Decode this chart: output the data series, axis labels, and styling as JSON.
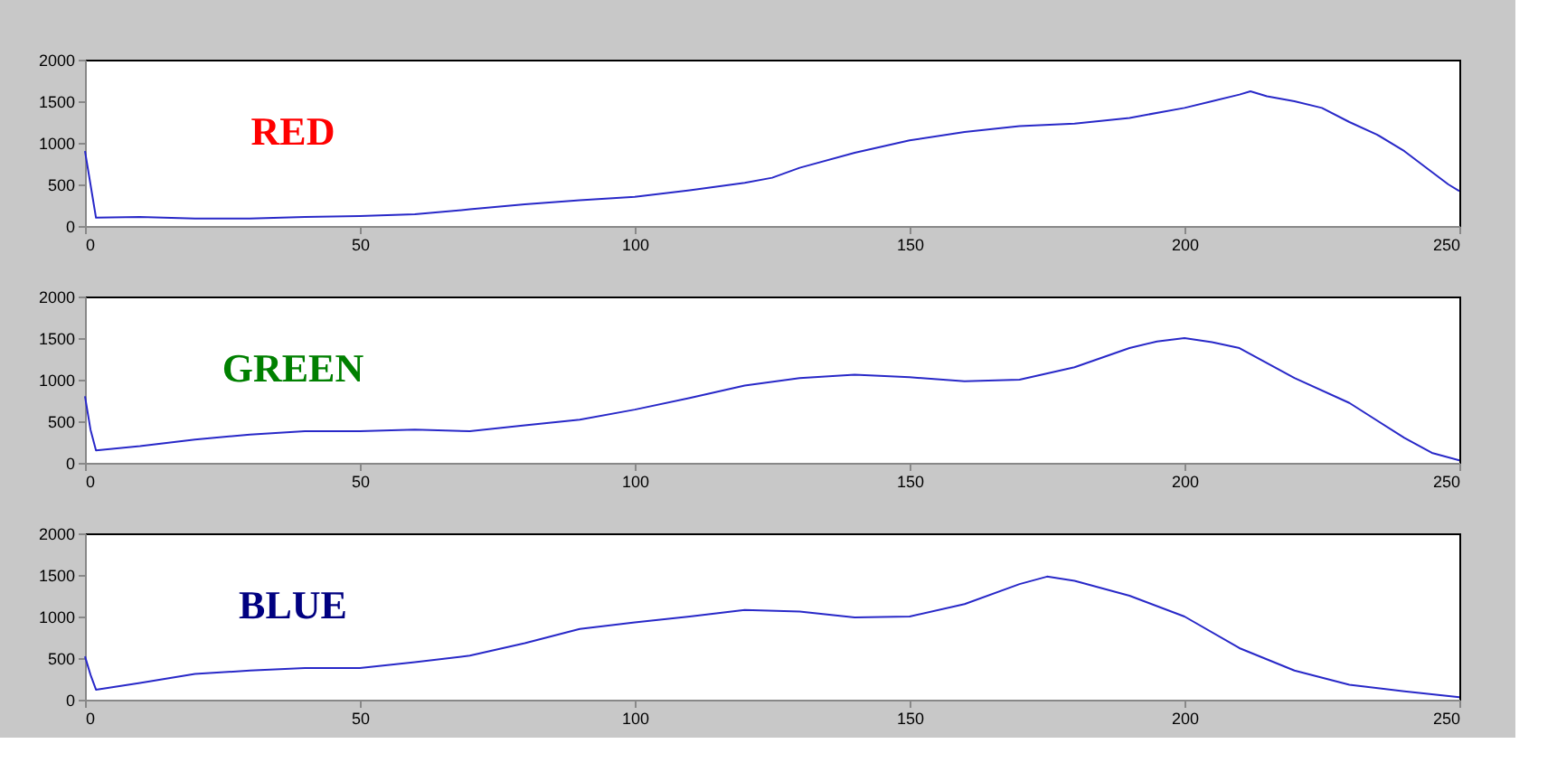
{
  "chart_data": [
    {
      "type": "line",
      "annotations": [
        "RED"
      ],
      "xlim": [
        0,
        250
      ],
      "xticks": [
        0,
        50,
        100,
        150,
        200,
        250
      ],
      "ylim": [
        0,
        2000
      ],
      "yticks": [
        0,
        500,
        1000,
        1500,
        2000
      ],
      "grid": false,
      "series": [
        {
          "color": "#2828c8",
          "x": [
            0,
            1,
            2,
            10,
            20,
            30,
            40,
            50,
            60,
            70,
            80,
            90,
            100,
            110,
            120,
            125,
            130,
            140,
            150,
            160,
            170,
            180,
            190,
            200,
            205,
            210,
            212,
            215,
            220,
            225,
            230,
            235,
            240,
            245,
            248,
            250
          ],
          "values": [
            900,
            500,
            100,
            110,
            90,
            90,
            110,
            120,
            140,
            200,
            260,
            310,
            350,
            430,
            520,
            580,
            700,
            880,
            1030,
            1130,
            1200,
            1230,
            1300,
            1420,
            1500,
            1580,
            1620,
            1560,
            1500,
            1420,
            1250,
            1100,
            900,
            650,
            500,
            420
          ]
        }
      ]
    },
    {
      "type": "line",
      "annotations": [
        "GREEN"
      ],
      "xlim": [
        0,
        250
      ],
      "xticks": [
        0,
        50,
        100,
        150,
        200,
        250
      ],
      "ylim": [
        0,
        2000
      ],
      "yticks": [
        0,
        500,
        1000,
        1500,
        2000
      ],
      "grid": false,
      "series": [
        {
          "color": "#2828c8",
          "x": [
            0,
            1,
            2,
            10,
            20,
            30,
            40,
            50,
            60,
            70,
            80,
            90,
            100,
            110,
            120,
            130,
            140,
            150,
            160,
            170,
            180,
            190,
            195,
            200,
            205,
            210,
            215,
            220,
            230,
            240,
            245,
            250
          ],
          "values": [
            800,
            400,
            150,
            200,
            280,
            340,
            380,
            380,
            400,
            380,
            450,
            520,
            640,
            780,
            930,
            1020,
            1060,
            1030,
            980,
            1000,
            1150,
            1380,
            1460,
            1500,
            1450,
            1380,
            1200,
            1020,
            720,
            300,
            120,
            30
          ]
        }
      ]
    },
    {
      "type": "line",
      "annotations": [
        "BLUE"
      ],
      "xlim": [
        0,
        250
      ],
      "xticks": [
        0,
        50,
        100,
        150,
        200,
        250
      ],
      "ylim": [
        0,
        2000
      ],
      "yticks": [
        0,
        500,
        1000,
        1500,
        2000
      ],
      "grid": false,
      "series": [
        {
          "color": "#2828c8",
          "x": [
            0,
            1,
            2,
            10,
            20,
            30,
            40,
            50,
            60,
            70,
            80,
            90,
            100,
            110,
            120,
            130,
            140,
            150,
            160,
            170,
            175,
            180,
            190,
            200,
            210,
            220,
            230,
            240,
            250
          ],
          "values": [
            520,
            300,
            120,
            200,
            310,
            350,
            380,
            380,
            450,
            530,
            680,
            850,
            930,
            1000,
            1080,
            1060,
            990,
            1000,
            1150,
            1390,
            1480,
            1430,
            1250,
            1000,
            620,
            350,
            180,
            100,
            30
          ]
        }
      ]
    }
  ]
}
